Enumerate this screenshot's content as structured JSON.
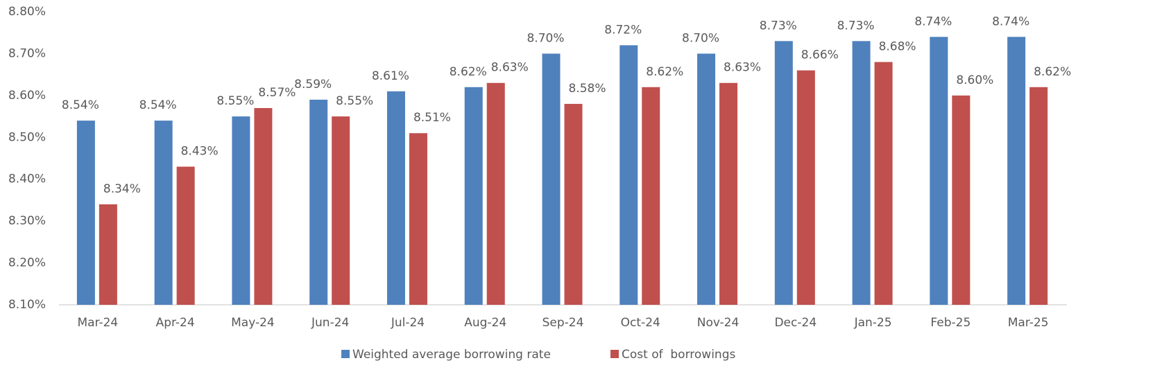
{
  "chart_data": {
    "type": "bar",
    "categories": [
      "Mar-24",
      "Apr-24",
      "May-24",
      "Jun-24",
      "Jul-24",
      "Aug-24",
      "Sep-24",
      "Oct-24",
      "Nov-24",
      "Dec-24",
      "Jan-25",
      "Feb-25",
      "Mar-25"
    ],
    "series": [
      {
        "name": "Weighted average borrowing rate",
        "color": "#4f81bd",
        "values": [
          8.54,
          8.54,
          8.55,
          8.59,
          8.61,
          8.62,
          8.7,
          8.72,
          8.7,
          8.73,
          8.73,
          8.74,
          8.74
        ],
        "value_labels": [
          "8.54%",
          "8.54%",
          "8.55%",
          "8.59%",
          "8.61%",
          "8.62%",
          "8.70%",
          "8.72%",
          "8.70%",
          "8.73%",
          "8.73%",
          "8.74%",
          "8.74%"
        ]
      },
      {
        "name": "Cost of  borrowings",
        "color": "#c0504d",
        "values": [
          8.34,
          8.43,
          8.57,
          8.55,
          8.51,
          8.63,
          8.58,
          8.62,
          8.63,
          8.66,
          8.68,
          8.6,
          8.62
        ],
        "value_labels": [
          "8.34%",
          "8.43%",
          "8.57%",
          "8.55%",
          "8.51%",
          "8.63%",
          "8.58%",
          "8.62%",
          "8.63%",
          "8.66%",
          "8.68%",
          "8.60%",
          "8.62%"
        ]
      }
    ],
    "ylim": [
      8.1,
      8.8
    ],
    "yticks": [
      {
        "value": 8.1,
        "label": "8.10%"
      },
      {
        "value": 8.2,
        "label": "8.20%"
      },
      {
        "value": 8.3,
        "label": "8.30%"
      },
      {
        "value": 8.4,
        "label": "8.40%"
      },
      {
        "value": 8.5,
        "label": "8.50%"
      },
      {
        "value": 8.6,
        "label": "8.60%"
      },
      {
        "value": 8.7,
        "label": "8.70%"
      },
      {
        "value": 8.8,
        "label": "8.80%"
      }
    ],
    "grid": false,
    "legend": "bottom"
  }
}
